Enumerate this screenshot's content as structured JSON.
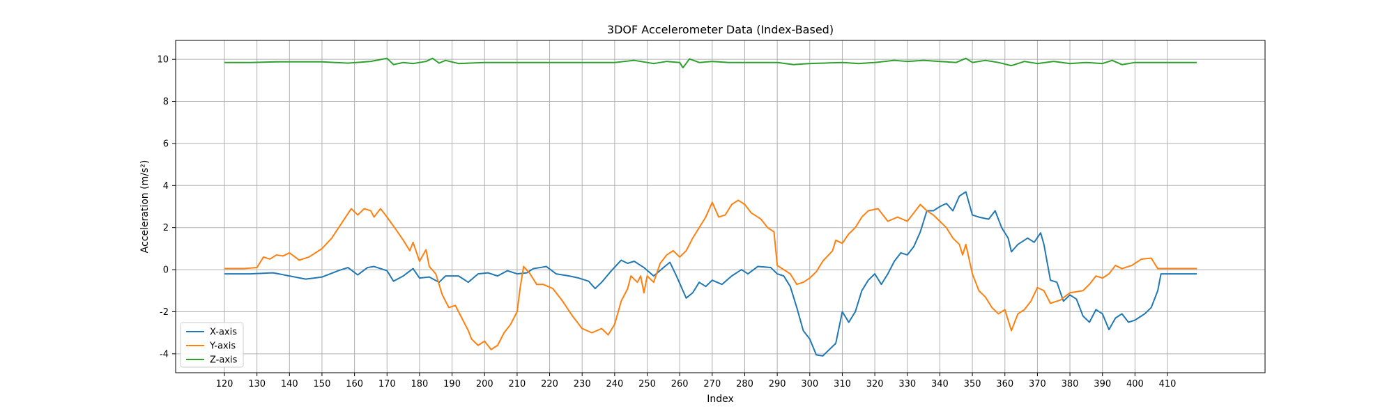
{
  "chart_data": {
    "type": "line",
    "title": "3DOF Accelerometer Data (Index-Based)",
    "xlabel": "Index",
    "ylabel": "Acceleration (m/s²)",
    "xlim": [
      105,
      440
    ],
    "ylim": [
      -4.9,
      10.9
    ],
    "x_ticks": [
      120,
      130,
      140,
      150,
      160,
      170,
      180,
      190,
      200,
      210,
      220,
      230,
      240,
      250,
      260,
      270,
      280,
      290,
      300,
      310,
      320,
      330,
      340,
      350,
      360,
      370,
      380,
      390,
      400,
      410
    ],
    "y_ticks": [
      -4,
      -2,
      0,
      2,
      4,
      6,
      8,
      10
    ],
    "grid": true,
    "legend_position": "bottom-left",
    "x_start": 120,
    "x_end": 419,
    "series": [
      {
        "name": "X-axis",
        "color": "#1f77b4",
        "keypoints": [
          [
            120,
            -0.2
          ],
          [
            128,
            -0.2
          ],
          [
            135,
            -0.15
          ],
          [
            140,
            -0.3
          ],
          [
            145,
            -0.45
          ],
          [
            150,
            -0.35
          ],
          [
            155,
            -0.05
          ],
          [
            158,
            0.1
          ],
          [
            161,
            -0.25
          ],
          [
            164,
            0.1
          ],
          [
            166,
            0.15
          ],
          [
            170,
            -0.05
          ],
          [
            172,
            -0.55
          ],
          [
            175,
            -0.3
          ],
          [
            178,
            0.05
          ],
          [
            180,
            -0.4
          ],
          [
            183,
            -0.35
          ],
          [
            186,
            -0.6
          ],
          [
            188,
            -0.3
          ],
          [
            192,
            -0.3
          ],
          [
            195,
            -0.6
          ],
          [
            198,
            -0.2
          ],
          [
            201,
            -0.15
          ],
          [
            204,
            -0.3
          ],
          [
            207,
            -0.05
          ],
          [
            210,
            -0.2
          ],
          [
            213,
            -0.15
          ],
          [
            215,
            0.05
          ],
          [
            219,
            0.15
          ],
          [
            222,
            -0.2
          ],
          [
            226,
            -0.3
          ],
          [
            229,
            -0.4
          ],
          [
            232,
            -0.55
          ],
          [
            234,
            -0.9
          ],
          [
            236,
            -0.6
          ],
          [
            239,
            -0.05
          ],
          [
            242,
            0.45
          ],
          [
            244,
            0.3
          ],
          [
            246,
            0.4
          ],
          [
            249,
            0.1
          ],
          [
            252,
            -0.3
          ],
          [
            255,
            0.1
          ],
          [
            257,
            0.35
          ],
          [
            259,
            -0.3
          ],
          [
            262,
            -1.35
          ],
          [
            264,
            -1.1
          ],
          [
            266,
            -0.6
          ],
          [
            268,
            -0.8
          ],
          [
            270,
            -0.5
          ],
          [
            273,
            -0.7
          ],
          [
            276,
            -0.3
          ],
          [
            279,
            0.0
          ],
          [
            281,
            -0.2
          ],
          [
            284,
            0.15
          ],
          [
            288,
            0.1
          ],
          [
            290,
            -0.2
          ],
          [
            292,
            -0.3
          ],
          [
            294,
            -0.8
          ],
          [
            296,
            -1.8
          ],
          [
            298,
            -2.9
          ],
          [
            300,
            -3.3
          ],
          [
            302,
            -4.05
          ],
          [
            304,
            -4.1
          ],
          [
            306,
            -3.8
          ],
          [
            308,
            -3.5
          ],
          [
            310,
            -2.0
          ],
          [
            312,
            -2.5
          ],
          [
            314,
            -2.0
          ],
          [
            316,
            -1.0
          ],
          [
            318,
            -0.5
          ],
          [
            320,
            -0.2
          ],
          [
            322,
            -0.7
          ],
          [
            324,
            -0.2
          ],
          [
            326,
            0.4
          ],
          [
            328,
            0.8
          ],
          [
            330,
            0.7
          ],
          [
            332,
            1.1
          ],
          [
            334,
            1.8
          ],
          [
            336,
            2.8
          ],
          [
            338,
            2.8
          ],
          [
            340,
            3.0
          ],
          [
            342,
            3.15
          ],
          [
            344,
            2.8
          ],
          [
            346,
            3.5
          ],
          [
            348,
            3.7
          ],
          [
            350,
            2.6
          ],
          [
            352,
            2.5
          ],
          [
            355,
            2.4
          ],
          [
            357,
            2.8
          ],
          [
            359,
            2.0
          ],
          [
            361,
            1.5
          ],
          [
            362,
            0.85
          ],
          [
            364,
            1.2
          ],
          [
            367,
            1.5
          ],
          [
            369,
            1.3
          ],
          [
            371,
            1.75
          ],
          [
            372,
            1.2
          ],
          [
            374,
            -0.5
          ],
          [
            376,
            -0.6
          ],
          [
            378,
            -1.5
          ],
          [
            380,
            -1.2
          ],
          [
            382,
            -1.4
          ],
          [
            384,
            -2.2
          ],
          [
            386,
            -2.5
          ],
          [
            388,
            -1.9
          ],
          [
            390,
            -2.1
          ],
          [
            392,
            -2.85
          ],
          [
            394,
            -2.3
          ],
          [
            396,
            -2.1
          ],
          [
            398,
            -2.5
          ],
          [
            400,
            -2.4
          ],
          [
            403,
            -2.1
          ],
          [
            405,
            -1.8
          ],
          [
            407,
            -1.0
          ],
          [
            408,
            -0.2
          ],
          [
            412,
            -0.2
          ],
          [
            419,
            -0.2
          ]
        ]
      },
      {
        "name": "Y-axis",
        "color": "#ff7f0e",
        "keypoints": [
          [
            120,
            0.05
          ],
          [
            126,
            0.05
          ],
          [
            130,
            0.1
          ],
          [
            132,
            0.6
          ],
          [
            134,
            0.5
          ],
          [
            136,
            0.7
          ],
          [
            138,
            0.65
          ],
          [
            140,
            0.8
          ],
          [
            143,
            0.45
          ],
          [
            146,
            0.6
          ],
          [
            150,
            1.0
          ],
          [
            153,
            1.5
          ],
          [
            156,
            2.2
          ],
          [
            159,
            2.9
          ],
          [
            161,
            2.6
          ],
          [
            163,
            2.9
          ],
          [
            165,
            2.8
          ],
          [
            166,
            2.5
          ],
          [
            168,
            2.9
          ],
          [
            170,
            2.5
          ],
          [
            173,
            1.85
          ],
          [
            175,
            1.4
          ],
          [
            177,
            0.9
          ],
          [
            178,
            1.3
          ],
          [
            180,
            0.4
          ],
          [
            182,
            0.95
          ],
          [
            183,
            0.15
          ],
          [
            185,
            -0.2
          ],
          [
            187,
            -1.2
          ],
          [
            189,
            -1.8
          ],
          [
            191,
            -1.7
          ],
          [
            193,
            -2.3
          ],
          [
            195,
            -2.9
          ],
          [
            196,
            -3.3
          ],
          [
            198,
            -3.6
          ],
          [
            200,
            -3.4
          ],
          [
            202,
            -3.8
          ],
          [
            204,
            -3.6
          ],
          [
            206,
            -3.0
          ],
          [
            208,
            -2.6
          ],
          [
            210,
            -2.0
          ],
          [
            211,
            -0.8
          ],
          [
            212,
            0.15
          ],
          [
            214,
            -0.2
          ],
          [
            216,
            -0.7
          ],
          [
            218,
            -0.7
          ],
          [
            221,
            -0.9
          ],
          [
            224,
            -1.5
          ],
          [
            227,
            -2.2
          ],
          [
            230,
            -2.8
          ],
          [
            233,
            -3.0
          ],
          [
            236,
            -2.8
          ],
          [
            238,
            -3.1
          ],
          [
            240,
            -2.6
          ],
          [
            242,
            -1.5
          ],
          [
            244,
            -0.9
          ],
          [
            245,
            -0.3
          ],
          [
            247,
            -0.6
          ],
          [
            248,
            -0.3
          ],
          [
            249,
            -1.1
          ],
          [
            250,
            -0.3
          ],
          [
            252,
            -0.6
          ],
          [
            254,
            0.3
          ],
          [
            256,
            0.7
          ],
          [
            258,
            0.9
          ],
          [
            260,
            0.6
          ],
          [
            262,
            0.9
          ],
          [
            264,
            1.5
          ],
          [
            266,
            2.0
          ],
          [
            268,
            2.5
          ],
          [
            270,
            3.2
          ],
          [
            272,
            2.5
          ],
          [
            274,
            2.6
          ],
          [
            276,
            3.1
          ],
          [
            278,
            3.3
          ],
          [
            280,
            3.1
          ],
          [
            282,
            2.7
          ],
          [
            285,
            2.4
          ],
          [
            287,
            2.0
          ],
          [
            289,
            1.8
          ],
          [
            290,
            0.2
          ],
          [
            292,
            0.0
          ],
          [
            294,
            -0.2
          ],
          [
            296,
            -0.7
          ],
          [
            298,
            -0.6
          ],
          [
            300,
            -0.4
          ],
          [
            302,
            -0.1
          ],
          [
            304,
            0.4
          ],
          [
            307,
            0.9
          ],
          [
            308,
            1.4
          ],
          [
            310,
            1.25
          ],
          [
            312,
            1.7
          ],
          [
            314,
            2.0
          ],
          [
            316,
            2.5
          ],
          [
            318,
            2.8
          ],
          [
            321,
            2.9
          ],
          [
            324,
            2.3
          ],
          [
            327,
            2.5
          ],
          [
            330,
            2.3
          ],
          [
            332,
            2.7
          ],
          [
            334,
            3.1
          ],
          [
            336,
            2.8
          ],
          [
            338,
            2.6
          ],
          [
            340,
            2.3
          ],
          [
            342,
            2.0
          ],
          [
            344,
            1.5
          ],
          [
            346,
            1.2
          ],
          [
            347,
            0.7
          ],
          [
            348,
            1.2
          ],
          [
            350,
            -0.2
          ],
          [
            352,
            -1.0
          ],
          [
            354,
            -1.3
          ],
          [
            356,
            -1.8
          ],
          [
            358,
            -2.1
          ],
          [
            360,
            -1.9
          ],
          [
            362,
            -2.9
          ],
          [
            364,
            -2.1
          ],
          [
            366,
            -1.9
          ],
          [
            368,
            -1.5
          ],
          [
            370,
            -0.85
          ],
          [
            372,
            -1.0
          ],
          [
            374,
            -1.6
          ],
          [
            377,
            -1.45
          ],
          [
            380,
            -1.1
          ],
          [
            384,
            -1.0
          ],
          [
            386,
            -0.7
          ],
          [
            388,
            -0.3
          ],
          [
            390,
            -0.4
          ],
          [
            392,
            -0.2
          ],
          [
            394,
            0.2
          ],
          [
            396,
            0.05
          ],
          [
            399,
            0.2
          ],
          [
            402,
            0.5
          ],
          [
            405,
            0.55
          ],
          [
            407,
            0.05
          ],
          [
            410,
            0.05
          ],
          [
            415,
            0.05
          ],
          [
            419,
            0.05
          ]
        ]
      },
      {
        "name": "Z-axis",
        "color": "#2ca02c",
        "keypoints": [
          [
            120,
            9.85
          ],
          [
            128,
            9.85
          ],
          [
            136,
            9.88
          ],
          [
            150,
            9.88
          ],
          [
            158,
            9.82
          ],
          [
            165,
            9.9
          ],
          [
            170,
            10.05
          ],
          [
            172,
            9.75
          ],
          [
            175,
            9.85
          ],
          [
            178,
            9.8
          ],
          [
            182,
            9.9
          ],
          [
            184,
            10.05
          ],
          [
            186,
            9.82
          ],
          [
            188,
            9.95
          ],
          [
            192,
            9.8
          ],
          [
            200,
            9.85
          ],
          [
            210,
            9.85
          ],
          [
            220,
            9.85
          ],
          [
            230,
            9.85
          ],
          [
            240,
            9.85
          ],
          [
            246,
            9.95
          ],
          [
            252,
            9.8
          ],
          [
            256,
            9.9
          ],
          [
            260,
            9.85
          ],
          [
            261,
            9.6
          ],
          [
            263,
            10.02
          ],
          [
            266,
            9.85
          ],
          [
            270,
            9.9
          ],
          [
            275,
            9.85
          ],
          [
            280,
            9.85
          ],
          [
            290,
            9.85
          ],
          [
            295,
            9.75
          ],
          [
            300,
            9.8
          ],
          [
            310,
            9.85
          ],
          [
            315,
            9.8
          ],
          [
            320,
            9.85
          ],
          [
            326,
            9.95
          ],
          [
            330,
            9.9
          ],
          [
            335,
            9.95
          ],
          [
            340,
            9.9
          ],
          [
            345,
            9.85
          ],
          [
            348,
            10.05
          ],
          [
            350,
            9.85
          ],
          [
            354,
            9.95
          ],
          [
            358,
            9.85
          ],
          [
            362,
            9.7
          ],
          [
            366,
            9.9
          ],
          [
            370,
            9.8
          ],
          [
            375,
            9.9
          ],
          [
            380,
            9.8
          ],
          [
            385,
            9.85
          ],
          [
            390,
            9.8
          ],
          [
            393,
            9.95
          ],
          [
            396,
            9.75
          ],
          [
            400,
            9.85
          ],
          [
            410,
            9.85
          ],
          [
            419,
            9.85
          ]
        ]
      }
    ]
  }
}
